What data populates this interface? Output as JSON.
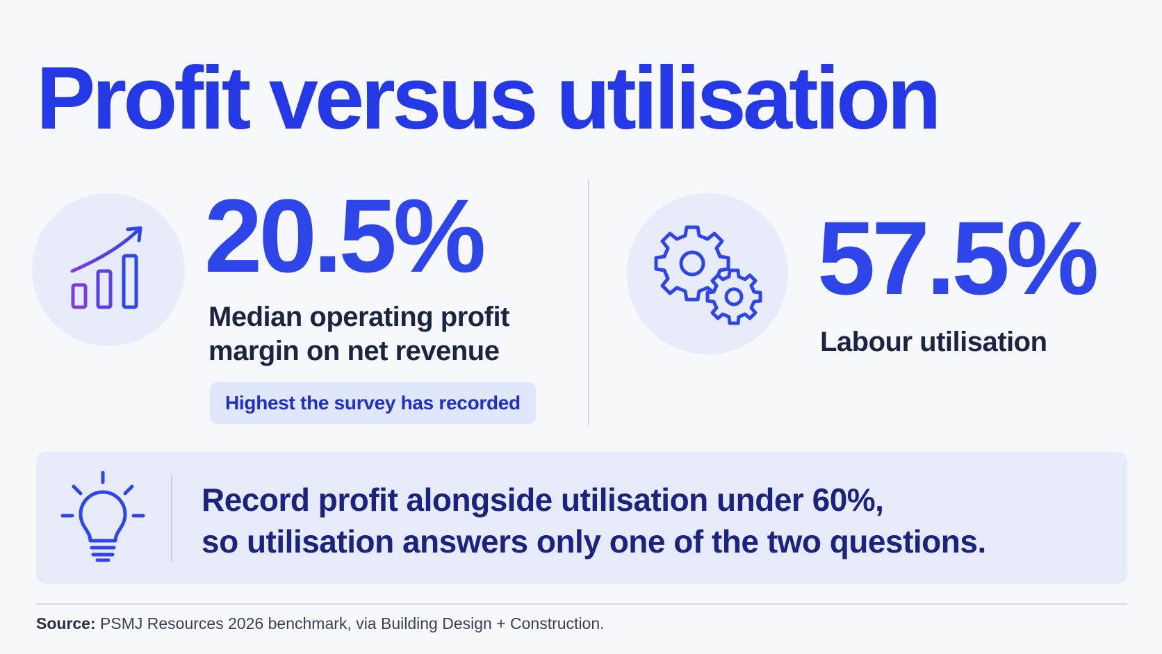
{
  "title": "Profit versus utilisation",
  "stats": [
    {
      "icon": "rising-bar-chart-icon",
      "value": "20.5%",
      "label_line1": "Median operating profit",
      "label_line2": "margin on net revenue",
      "badge": "Highest the survey has recorded"
    },
    {
      "icon": "gears-icon",
      "value": "57.5%",
      "label_line1": "Labour utilisation"
    }
  ],
  "insight": {
    "icon": "lightbulb-icon",
    "line1": "Record profit alongside utilisation under 60%,",
    "line2": "so utilisation answers only one of the two questions."
  },
  "source": {
    "label": "Source:",
    "text": "PSMJ Resources 2026 benchmark, via Building Design + Construction."
  },
  "colors": {
    "accent": "#2e45ea",
    "title": "#2438e6",
    "dark_text": "#1b2441",
    "panel": "#e7ebf9",
    "icon_circle": "#e8ecfa"
  }
}
